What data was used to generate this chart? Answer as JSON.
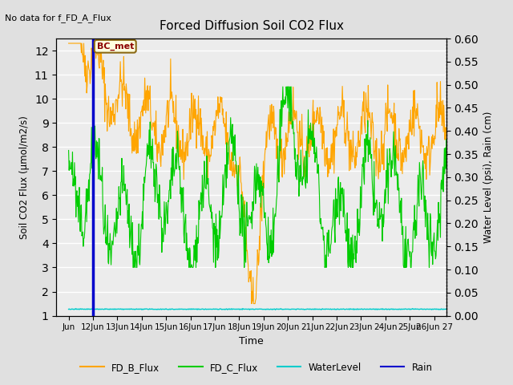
{
  "title": "Forced Diffusion Soil CO2 Flux",
  "no_data_text": "No data for f_FD_A_Flux",
  "xlabel": "Time",
  "ylabel_left": "Soil CO2 Flux (μmol/m2/s)",
  "ylabel_right": "Water Level (psi), Rain (cm)",
  "ylim_left": [
    1.0,
    12.5
  ],
  "ylim_right": [
    0.0,
    0.6
  ],
  "yticks_left": [
    1.0,
    2.0,
    3.0,
    4.0,
    5.0,
    6.0,
    7.0,
    8.0,
    9.0,
    10.0,
    11.0,
    12.0
  ],
  "yticks_right": [
    0.0,
    0.05,
    0.1,
    0.15,
    0.2,
    0.25,
    0.3,
    0.35,
    0.4,
    0.45,
    0.5,
    0.55,
    0.6
  ],
  "xtick_positions": [
    0,
    1,
    2,
    3,
    4,
    5,
    6,
    7,
    8,
    9,
    10,
    11,
    12,
    13,
    14,
    15
  ],
  "xtick_labels": [
    "Jun",
    "12Jun",
    "13Jun",
    "14Jun",
    "15Jun",
    "16Jun",
    "17Jun",
    "18Jun",
    "19Jun",
    "20Jun",
    "21Jun",
    "22Jun",
    "23Jun",
    "24Jun",
    "25Jun",
    "26Jun 27"
  ],
  "xlim": [
    -0.5,
    15.5
  ],
  "bg_color": "#e0e0e0",
  "plot_bg_color": "#ececec",
  "grid_color": "#ffffff",
  "annotation_text": "BC_met",
  "rain_x": 1.0,
  "colors": {
    "FD_B_Flux": "#FFA500",
    "FD_C_Flux": "#00CC00",
    "WaterLevel": "#00CCCC",
    "Rain": "#0000CC"
  },
  "legend_labels": [
    "FD_B_Flux",
    "FD_C_Flux",
    "WaterLevel",
    "Rain"
  ]
}
